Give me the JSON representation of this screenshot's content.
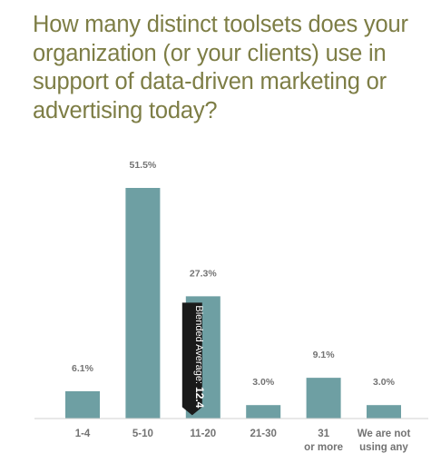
{
  "chart_data": {
    "type": "bar",
    "title": "How many distinct toolsets does your organization (or your clients) use in support of data-driven marketing or advertising today?",
    "categories": [
      "1-4",
      "5-10",
      "11-20",
      "21-30",
      "31 or more",
      "We are not using any"
    ],
    "category_lines": [
      [
        "1-4"
      ],
      [
        "5-10"
      ],
      [
        "11-20"
      ],
      [
        "21-30"
      ],
      [
        "31",
        "or more"
      ],
      [
        "We are not",
        "using any"
      ]
    ],
    "values": [
      6.1,
      51.5,
      27.3,
      3.0,
      9.1,
      3.0
    ],
    "value_labels": [
      "6.1%",
      "51.5%",
      "27.3%",
      "3.0%",
      "9.1%",
      "3.0%"
    ],
    "ylim": [
      0,
      55
    ],
    "grid": false,
    "bar_color": "#6e9fa3",
    "annotation": {
      "text": "Blended Average:",
      "value": "12.4",
      "category": "11-20",
      "color": "#1a1a1a"
    }
  }
}
